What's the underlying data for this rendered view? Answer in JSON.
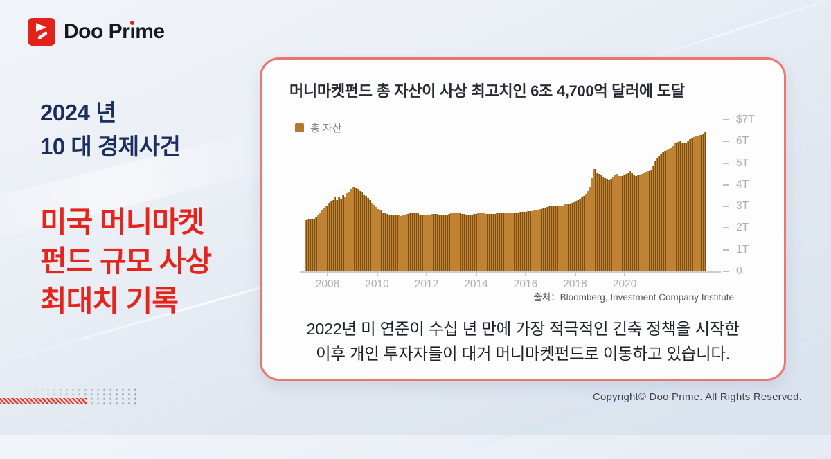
{
  "logo": {
    "text_before_i": "Doo Pr",
    "i_char": "ı",
    "text_after_i": "me"
  },
  "left_panel": {
    "subtitle_line1": "2024 년",
    "subtitle_line2": "10 대 경제사건",
    "headline_line1": "미국 머니마켓",
    "headline_line2": "펀드 규모 사상",
    "headline_line3": "최대치 기록"
  },
  "card": {
    "title": "머니마켓펀드 총 자산이 사상 최고치인 6조 4,700억 달러에 도달",
    "source": "출처：Bloomberg, Investment Company Institute",
    "caption_line1": "2022년 미 연준이 수십 년 만에 가장 적극적인 긴축 정책을 시작한",
    "caption_line2": "이후 개인 투자자들이 대거 머니마켓펀드로 이동하고 있습니다."
  },
  "footer": {
    "copyright": "Copyright© Doo Prime. All Rights Reserved."
  },
  "colors": {
    "accent_red": "#e5251d",
    "navy": "#1c2e5e",
    "card_border": "#ec756f",
    "bar_fill": "#c08334",
    "bar_edge": "#7d5016"
  },
  "chart_data": {
    "type": "bar",
    "title": "머니마켓펀드 총 자산이 사상 최고치인 6조 4,700억 달러에 도달",
    "unit": "USD trillions",
    "legend": [
      {
        "label": "총 자산",
        "color": "#b5772b"
      }
    ],
    "x_start_year": 2007,
    "x_end_year": 2023.5,
    "x_tick_labels": [
      "2008",
      "2010",
      "2012",
      "2014",
      "2016",
      "2018",
      "2020"
    ],
    "y_tick_labels": [
      "$7T",
      "6T",
      "5T",
      "4T",
      "3T",
      "2T",
      "1T",
      "0"
    ],
    "ylim": [
      0,
      7
    ],
    "grid": false,
    "legend_position": "top-left",
    "bar_color": "#c08334",
    "bar_edge_color": "#7d5016",
    "values": [
      2.38,
      2.4,
      2.42,
      2.43,
      2.44,
      2.52,
      2.62,
      2.72,
      2.83,
      2.94,
      3.05,
      3.15,
      3.22,
      3.3,
      3.42,
      3.28,
      3.45,
      3.34,
      3.52,
      3.43,
      3.6,
      3.68,
      3.8,
      3.9,
      3.86,
      3.8,
      3.72,
      3.64,
      3.56,
      3.47,
      3.38,
      3.28,
      3.18,
      3.08,
      2.98,
      2.88,
      2.8,
      2.73,
      2.68,
      2.64,
      2.62,
      2.6,
      2.58,
      2.59,
      2.61,
      2.58,
      2.56,
      2.58,
      2.62,
      2.64,
      2.67,
      2.69,
      2.71,
      2.69,
      2.67,
      2.63,
      2.61,
      2.59,
      2.58,
      2.6,
      2.62,
      2.64,
      2.66,
      2.64,
      2.62,
      2.6,
      2.58,
      2.6,
      2.62,
      2.65,
      2.68,
      2.7,
      2.72,
      2.7,
      2.68,
      2.66,
      2.64,
      2.62,
      2.6,
      2.61,
      2.62,
      2.64,
      2.66,
      2.67,
      2.68,
      2.68,
      2.67,
      2.66,
      2.65,
      2.64,
      2.65,
      2.66,
      2.67,
      2.68,
      2.69,
      2.7,
      2.71,
      2.71,
      2.72,
      2.72,
      2.72,
      2.73,
      2.73,
      2.74,
      2.74,
      2.75,
      2.76,
      2.77,
      2.78,
      2.79,
      2.8,
      2.82,
      2.85,
      2.88,
      2.91,
      2.95,
      2.97,
      2.99,
      3.0,
      3.02,
      3.05,
      3.03,
      3.01,
      3.0,
      3.05,
      3.1,
      3.12,
      3.14,
      3.16,
      3.2,
      3.25,
      3.3,
      3.35,
      3.42,
      3.5,
      3.58,
      3.7,
      3.9,
      4.3,
      4.72,
      4.55,
      4.5,
      4.45,
      4.38,
      4.3,
      4.25,
      4.22,
      4.25,
      4.35,
      4.45,
      4.5,
      4.42,
      4.42,
      4.45,
      4.5,
      4.55,
      4.65,
      4.55,
      4.45,
      4.42,
      4.45,
      4.45,
      4.5,
      4.55,
      4.6,
      4.65,
      4.7,
      4.85,
      5.1,
      5.25,
      5.3,
      5.4,
      5.5,
      5.55,
      5.6,
      5.65,
      5.7,
      5.78,
      5.9,
      5.98,
      6.0,
      5.95,
      5.9,
      5.95,
      6.05,
      6.1,
      6.15,
      6.2,
      6.25,
      6.28,
      6.3,
      6.35,
      6.45
    ]
  }
}
